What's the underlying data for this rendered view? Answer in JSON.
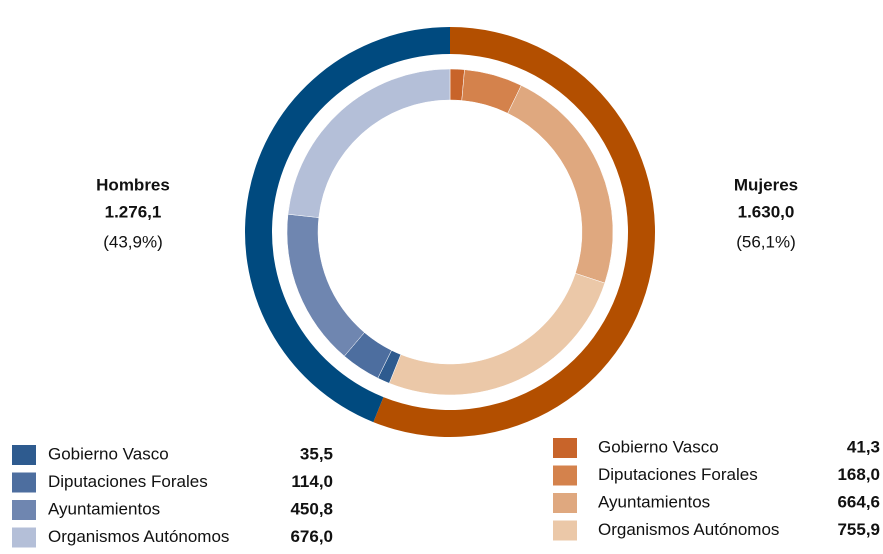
{
  "chart_data": {
    "type": "nested-donut",
    "series": [
      {
        "name": "Hombres",
        "color": "#004a7f",
        "total": 1276.1,
        "total_label": "1.276,1",
        "share": 43.9,
        "share_label": "(43,9%)",
        "categories": [
          "Gobierno Vasco",
          "Diputaciones Forales",
          "Ayuntamientos",
          "Organismos Autónomos"
        ],
        "values": [
          35.5,
          114.0,
          450.8,
          676.0
        ],
        "value_labels": [
          "35,5",
          "114,0",
          "450,8",
          "676,0"
        ],
        "colors": [
          "#2e5b8f",
          "#4d6e9f",
          "#6f86b0",
          "#b4bfd8"
        ]
      },
      {
        "name": "Mujeres",
        "color": "#b34f00",
        "total": 1630.0,
        "total_label": "1.630,0",
        "share": 56.1,
        "share_label": "(56,1%)",
        "categories": [
          "Gobierno Vasco",
          "Diputaciones Forales",
          "Ayuntamientos",
          "Organismos Autónomos"
        ],
        "values": [
          41.3,
          168.0,
          664.6,
          755.9
        ],
        "value_labels": [
          "41,3",
          "168,0",
          "664,6",
          "755,9"
        ],
        "colors": [
          "#c8642a",
          "#d4824c",
          "#dfa87f",
          "#ebc8a8"
        ]
      }
    ]
  }
}
